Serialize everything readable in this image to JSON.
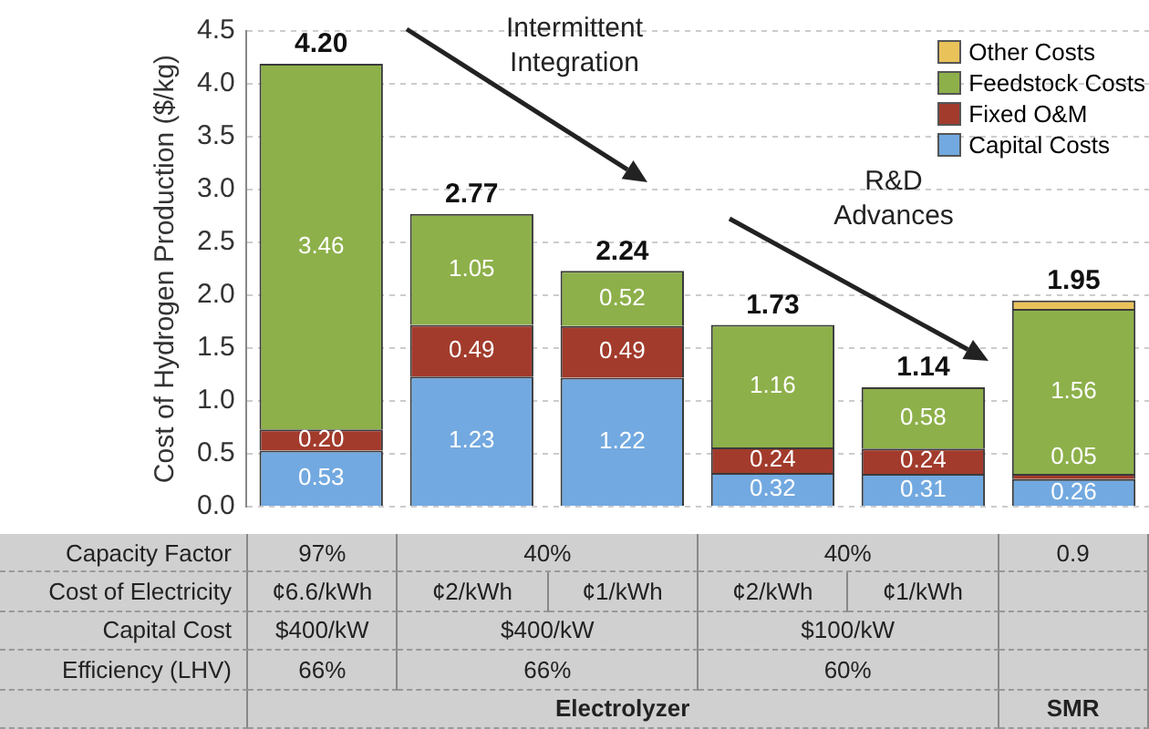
{
  "chart_data": {
    "type": "bar",
    "stacked": true,
    "ylabel": "Cost of Hydrogen Production ($/kg)",
    "categories": [
      null,
      null,
      null,
      null,
      null,
      null
    ],
    "series": [
      {
        "name": "Capital Costs",
        "color": "#72a9e0",
        "values": [
          0.53,
          1.23,
          1.22,
          0.32,
          0.31,
          0.26
        ],
        "value_labels": [
          "0.53",
          "1.23",
          "1.22",
          "0.32",
          "0.31",
          "0.26"
        ]
      },
      {
        "name": "Fixed O&M",
        "color": "#a23b2c",
        "values": [
          0.2,
          0.49,
          0.49,
          0.24,
          0.24,
          0.05
        ],
        "value_labels": [
          "0.20",
          "0.49",
          "0.49",
          "0.24",
          "0.24",
          "0.05"
        ]
      },
      {
        "name": "Feedstock Costs",
        "color": "#8db04a",
        "values": [
          3.46,
          1.05,
          0.52,
          1.16,
          0.58,
          1.56
        ],
        "value_labels": [
          "3.46",
          "1.05",
          "0.52",
          "1.16",
          "0.58",
          "1.56"
        ]
      },
      {
        "name": "Other Costs",
        "color": "#e9c25a",
        "values": [
          null,
          null,
          null,
          null,
          null,
          0.08
        ]
      }
    ],
    "totals": [
      "4.20",
      "2.77",
      "2.24",
      "1.73",
      "1.14",
      "1.95"
    ],
    "ylim": [
      0,
      4.5
    ],
    "yticks": [
      {
        "value": 0,
        "label": "0.0"
      },
      {
        "value": 0.5,
        "label": "0.5"
      },
      {
        "value": 1,
        "label": "1.0"
      },
      {
        "value": 1.5,
        "label": "1.5"
      },
      {
        "value": 2,
        "label": "2.0"
      },
      {
        "value": 2.5,
        "label": "2.5"
      },
      {
        "value": 3,
        "label": "3.0"
      },
      {
        "value": 3.5,
        "label": "3.5"
      },
      {
        "value": 4,
        "label": "4.0"
      },
      {
        "value": 4.5,
        "label": "4.5"
      }
    ],
    "grid": "y",
    "legend": "top right",
    "tick_labels": "y",
    "annotations": [
      "Intermittent Integration",
      "R&D Advances",
      "Capacity Factor",
      "97%",
      "40%",
      "40%",
      "0.9",
      "Cost of Electricity",
      "¢6.6/kWh",
      "¢2/kWh",
      "¢1/kWh",
      "¢2/kWh",
      "¢1/kWh",
      "Capital Cost",
      "$400/kW",
      "$400/kW",
      "$100/kW",
      "Efficiency (LHV)",
      "66%",
      "66%",
      "60%",
      "Electrolyzer",
      "SMR"
    ]
  }
}
